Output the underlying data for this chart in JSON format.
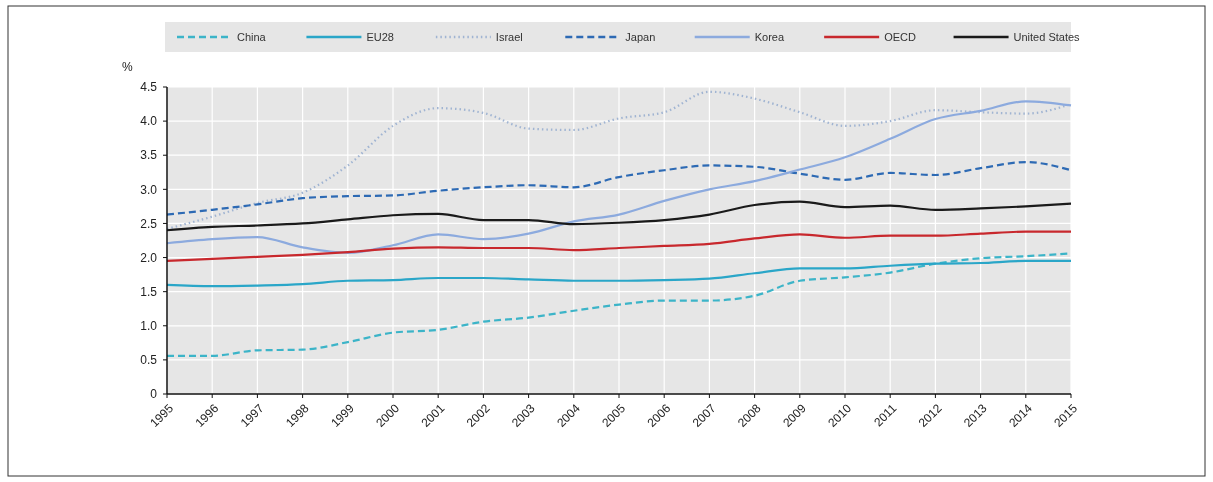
{
  "chart_data": {
    "type": "line",
    "ylabel": "%",
    "categories": [
      "1995",
      "1996",
      "1997",
      "1998",
      "1999",
      "2000",
      "2001",
      "2002",
      "2003",
      "2004",
      "2005",
      "2006",
      "2007",
      "2008",
      "2009",
      "2010",
      "2011",
      "2012",
      "2013",
      "2014",
      "2015"
    ],
    "ylim": [
      0,
      4.5
    ],
    "yticks": [
      0,
      0.5,
      {
        "value": 1,
        "label": "1.0"
      },
      1.5,
      {
        "value": 2,
        "label": "2.0"
      },
      2.5,
      {
        "value": 3,
        "label": "3.0"
      },
      3.5,
      {
        "value": 4,
        "label": "4.0"
      },
      4.5
    ],
    "grid": true,
    "legend": "top",
    "series": [
      {
        "name": "China",
        "color": "#3cb4c8",
        "line_style": "dashed",
        "values": [
          0.56,
          0.56,
          0.64,
          0.65,
          0.76,
          0.9,
          0.94,
          1.06,
          1.12,
          1.22,
          1.31,
          1.37,
          1.37,
          1.44,
          1.66,
          1.71,
          1.78,
          1.91,
          1.99,
          2.02,
          2.06
        ]
      },
      {
        "name": "EU28",
        "color": "#2aa6c8",
        "line_style": "solid",
        "values": [
          1.6,
          1.58,
          1.59,
          1.61,
          1.66,
          1.67,
          1.7,
          1.7,
          1.68,
          1.66,
          1.66,
          1.67,
          1.69,
          1.77,
          1.84,
          1.84,
          1.88,
          1.91,
          1.92,
          1.95,
          1.95
        ]
      },
      {
        "name": "Israel",
        "color": "#a0b4d2",
        "line_style": "dotted",
        "values": [
          2.42,
          2.6,
          2.8,
          2.95,
          3.35,
          3.93,
          4.19,
          4.12,
          3.89,
          3.87,
          4.04,
          4.13,
          4.43,
          4.33,
          4.13,
          3.93,
          4.0,
          4.16,
          4.13,
          4.11,
          4.25
        ]
      },
      {
        "name": "Japan",
        "color": "#2d6ab4",
        "line_style": "dashed",
        "values": [
          2.63,
          2.7,
          2.78,
          2.87,
          2.9,
          2.91,
          2.98,
          3.03,
          3.06,
          3.03,
          3.18,
          3.28,
          3.35,
          3.33,
          3.23,
          3.14,
          3.24,
          3.21,
          3.31,
          3.4,
          3.28
        ]
      },
      {
        "name": "Korea",
        "color": "#8caade",
        "line_style": "solid",
        "values": [
          2.21,
          2.27,
          2.3,
          2.15,
          2.07,
          2.18,
          2.34,
          2.27,
          2.35,
          2.53,
          2.63,
          2.83,
          3.0,
          3.12,
          3.29,
          3.47,
          3.74,
          4.03,
          4.15,
          4.29,
          4.23
        ]
      },
      {
        "name": "OECD",
        "color": "#c8282d",
        "line_style": "solid",
        "values": [
          1.95,
          1.98,
          2.01,
          2.04,
          2.08,
          2.13,
          2.15,
          2.14,
          2.14,
          2.11,
          2.14,
          2.17,
          2.2,
          2.28,
          2.34,
          2.29,
          2.32,
          2.32,
          2.35,
          2.38,
          2.38
        ]
      },
      {
        "name": "United States",
        "color": "#1a1a1a",
        "line_style": "solid",
        "values": [
          2.4,
          2.45,
          2.47,
          2.5,
          2.56,
          2.62,
          2.64,
          2.55,
          2.55,
          2.49,
          2.51,
          2.55,
          2.63,
          2.77,
          2.82,
          2.74,
          2.76,
          2.7,
          2.72,
          2.75,
          2.79
        ]
      }
    ]
  }
}
